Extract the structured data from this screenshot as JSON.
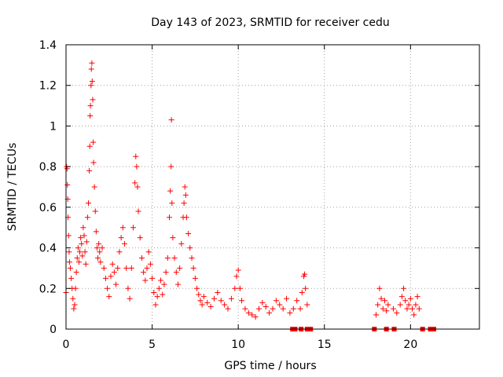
{
  "chart_data": {
    "type": "scatter",
    "title": "Day 143 of 2023, SRMTID for receiver cedu",
    "xlabel": "GPS time / hours",
    "ylabel": "SRMTID / TECUs",
    "xlim": [
      0,
      24
    ],
    "ylim": [
      0,
      1.4
    ],
    "xticks": [
      0,
      5,
      10,
      15,
      20
    ],
    "xtick_labels": [
      "0",
      "5",
      "10",
      "15",
      "20"
    ],
    "yticks": [
      0,
      0.2,
      0.4,
      0.6,
      0.8,
      1,
      1.2,
      1.4
    ],
    "ytick_labels": [
      "0",
      "0.2",
      "0.4",
      "0.6",
      "0.8",
      "1",
      "1.2",
      "1.4"
    ],
    "grid": true,
    "marker": "plus",
    "color": "#ff0000",
    "series": [
      {
        "name": "SRMTID",
        "points": [
          [
            0.0,
            0.18
          ],
          [
            0.03,
            0.8
          ],
          [
            0.06,
            0.79
          ],
          [
            0.08,
            0.71
          ],
          [
            0.1,
            0.64
          ],
          [
            0.12,
            0.55
          ],
          [
            0.15,
            0.46
          ],
          [
            0.18,
            0.38
          ],
          [
            0.2,
            0.33
          ],
          [
            0.25,
            0.3
          ],
          [
            0.3,
            0.25
          ],
          [
            0.35,
            0.2
          ],
          [
            0.4,
            0.15
          ],
          [
            0.45,
            0.1
          ],
          [
            0.5,
            0.12
          ],
          [
            0.55,
            0.2
          ],
          [
            0.6,
            0.28
          ],
          [
            0.65,
            0.35
          ],
          [
            0.7,
            0.4
          ],
          [
            0.75,
            0.33
          ],
          [
            0.8,
            0.38
          ],
          [
            0.85,
            0.45
          ],
          [
            0.9,
            0.42
          ],
          [
            0.95,
            0.36
          ],
          [
            1.0,
            0.5
          ],
          [
            1.05,
            0.46
          ],
          [
            1.1,
            0.38
          ],
          [
            1.15,
            0.32
          ],
          [
            1.2,
            0.43
          ],
          [
            1.25,
            0.55
          ],
          [
            1.3,
            0.62
          ],
          [
            1.35,
            0.78
          ],
          [
            1.38,
            0.9
          ],
          [
            1.4,
            1.05
          ],
          [
            1.42,
            1.1
          ],
          [
            1.45,
            1.2
          ],
          [
            1.47,
            1.28
          ],
          [
            1.5,
            1.31
          ],
          [
            1.52,
            1.22
          ],
          [
            1.55,
            1.13
          ],
          [
            1.58,
            0.92
          ],
          [
            1.6,
            0.82
          ],
          [
            1.65,
            0.7
          ],
          [
            1.7,
            0.58
          ],
          [
            1.75,
            0.48
          ],
          [
            1.8,
            0.4
          ],
          [
            1.85,
            0.35
          ],
          [
            1.9,
            0.42
          ],
          [
            1.95,
            0.38
          ],
          [
            2.0,
            0.33
          ],
          [
            2.1,
            0.4
          ],
          [
            2.2,
            0.3
          ],
          [
            2.3,
            0.25
          ],
          [
            2.4,
            0.2
          ],
          [
            2.5,
            0.16
          ],
          [
            2.6,
            0.26
          ],
          [
            2.7,
            0.32
          ],
          [
            2.8,
            0.28
          ],
          [
            2.9,
            0.22
          ],
          [
            3.0,
            0.3
          ],
          [
            3.1,
            0.38
          ],
          [
            3.2,
            0.45
          ],
          [
            3.3,
            0.5
          ],
          [
            3.4,
            0.42
          ],
          [
            3.5,
            0.3
          ],
          [
            3.6,
            0.2
          ],
          [
            3.7,
            0.15
          ],
          [
            3.8,
            0.3
          ],
          [
            3.9,
            0.5
          ],
          [
            4.0,
            0.72
          ],
          [
            4.05,
            0.85
          ],
          [
            4.1,
            0.8
          ],
          [
            4.15,
            0.7
          ],
          [
            4.2,
            0.58
          ],
          [
            4.3,
            0.45
          ],
          [
            4.4,
            0.35
          ],
          [
            4.5,
            0.28
          ],
          [
            4.6,
            0.24
          ],
          [
            4.7,
            0.3
          ],
          [
            4.8,
            0.38
          ],
          [
            4.9,
            0.32
          ],
          [
            5.0,
            0.25
          ],
          [
            5.1,
            0.18
          ],
          [
            5.2,
            0.12
          ],
          [
            5.3,
            0.16
          ],
          [
            5.4,
            0.2
          ],
          [
            5.5,
            0.24
          ],
          [
            5.6,
            0.17
          ],
          [
            5.7,
            0.22
          ],
          [
            5.8,
            0.28
          ],
          [
            5.9,
            0.35
          ],
          [
            6.0,
            0.55
          ],
          [
            6.05,
            0.68
          ],
          [
            6.1,
            0.8
          ],
          [
            6.12,
            1.03
          ],
          [
            6.15,
            0.62
          ],
          [
            6.2,
            0.45
          ],
          [
            6.3,
            0.35
          ],
          [
            6.4,
            0.28
          ],
          [
            6.5,
            0.22
          ],
          [
            6.6,
            0.3
          ],
          [
            6.7,
            0.42
          ],
          [
            6.8,
            0.55
          ],
          [
            6.85,
            0.62
          ],
          [
            6.9,
            0.7
          ],
          [
            6.95,
            0.66
          ],
          [
            7.0,
            0.55
          ],
          [
            7.1,
            0.47
          ],
          [
            7.2,
            0.4
          ],
          [
            7.3,
            0.35
          ],
          [
            7.4,
            0.3
          ],
          [
            7.5,
            0.25
          ],
          [
            7.6,
            0.2
          ],
          [
            7.7,
            0.17
          ],
          [
            7.8,
            0.14
          ],
          [
            7.9,
            0.12
          ],
          [
            8.0,
            0.16
          ],
          [
            8.2,
            0.13
          ],
          [
            8.4,
            0.11
          ],
          [
            8.6,
            0.15
          ],
          [
            8.8,
            0.18
          ],
          [
            9.0,
            0.14
          ],
          [
            9.2,
            0.12
          ],
          [
            9.4,
            0.1
          ],
          [
            9.6,
            0.15
          ],
          [
            9.8,
            0.2
          ],
          [
            9.9,
            0.26
          ],
          [
            10.0,
            0.29
          ],
          [
            10.1,
            0.2
          ],
          [
            10.2,
            0.14
          ],
          [
            10.4,
            0.1
          ],
          [
            10.6,
            0.08
          ],
          [
            10.8,
            0.07
          ],
          [
            11.0,
            0.06
          ],
          [
            11.2,
            0.1
          ],
          [
            11.4,
            0.13
          ],
          [
            11.6,
            0.11
          ],
          [
            11.8,
            0.08
          ],
          [
            12.0,
            0.1
          ],
          [
            12.2,
            0.14
          ],
          [
            12.4,
            0.12
          ],
          [
            12.6,
            0.1
          ],
          [
            12.8,
            0.15
          ],
          [
            13.0,
            0.08
          ],
          [
            13.2,
            0.1
          ],
          [
            13.4,
            0.14
          ],
          [
            13.6,
            0.1
          ],
          [
            13.7,
            0.18
          ],
          [
            13.8,
            0.26
          ],
          [
            13.85,
            0.27
          ],
          [
            13.9,
            0.2
          ],
          [
            14.0,
            0.12
          ],
          [
            18.0,
            0.07
          ],
          [
            18.1,
            0.12
          ],
          [
            18.2,
            0.2
          ],
          [
            18.3,
            0.15
          ],
          [
            18.4,
            0.1
          ],
          [
            18.5,
            0.14
          ],
          [
            18.6,
            0.09
          ],
          [
            18.7,
            0.12
          ],
          [
            19.0,
            0.1
          ],
          [
            19.2,
            0.08
          ],
          [
            19.4,
            0.12
          ],
          [
            19.5,
            0.16
          ],
          [
            19.6,
            0.2
          ],
          [
            19.7,
            0.14
          ],
          [
            19.8,
            0.1
          ],
          [
            19.9,
            0.12
          ],
          [
            20.0,
            0.15
          ],
          [
            20.1,
            0.1
          ],
          [
            20.2,
            0.07
          ],
          [
            20.3,
            0.12
          ],
          [
            20.4,
            0.16
          ],
          [
            20.5,
            0.1
          ]
        ]
      }
    ],
    "flags": {
      "name": "missing-data markers",
      "y": 0,
      "x": [
        13.15,
        13.3,
        13.65,
        14.0,
        14.2,
        17.9,
        18.6,
        19.05,
        20.7,
        21.15,
        21.35
      ]
    }
  }
}
